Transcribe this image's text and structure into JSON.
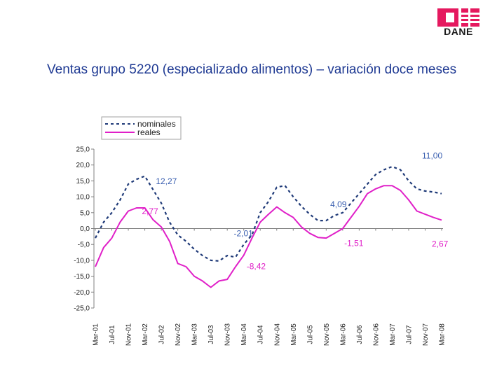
{
  "brand": {
    "logo_text": "DANE",
    "accent": "#e5195f"
  },
  "title": "Ventas grupo 5220 (especializado alimentos) – variación doce meses",
  "chart_data": {
    "type": "line",
    "title": "Ventas grupo 5220 (especializado alimentos) – variación doce meses",
    "xlabel": "",
    "ylabel": "",
    "ylim": [
      -25,
      25
    ],
    "yticks": [
      "25,0",
      "20,0",
      "15,0",
      "10,0",
      "5,0",
      "0,0",
      "-5,0",
      "-10,0",
      "-15,0",
      "-20,0",
      "-25,0"
    ],
    "x": [
      "Mar-01",
      "May-01",
      "Jul-01",
      "Sep-01",
      "Nov-01",
      "Ene-02",
      "Mar-02",
      "May-02",
      "Jul-02",
      "Sep-02",
      "Nov-02",
      "Ene-03",
      "Mar-03",
      "May-03",
      "Jul-03",
      "Sep-03",
      "Nov-03",
      "Ene-04",
      "Mar-04",
      "May-04",
      "Jul-04",
      "Sep-04",
      "Nov-04",
      "Ene-05",
      "Mar-05",
      "May-05",
      "Jul-05",
      "Sep-05",
      "Nov-05",
      "Ene-06",
      "Mar-06",
      "May-06",
      "Jul-06",
      "Sep-06",
      "Nov-06",
      "Ene-07",
      "Mar-07",
      "May-07",
      "Jul-07",
      "Sep-07",
      "Nov-07",
      "Ene-08",
      "Mar-08"
    ],
    "x_tick_labels": [
      "Mar-01",
      "Jul-01",
      "Nov-01",
      "Mar-02",
      "Jul-02",
      "Nov-02",
      "Mar-03",
      "Jul-03",
      "Nov-03",
      "Mar-04",
      "Jul-04",
      "Nov-04",
      "Mar-05",
      "Jul-05",
      "Nov-05",
      "Mar-06",
      "Jul-06",
      "Nov-06",
      "Mar-07",
      "Jul-07",
      "Nov-07",
      "Mar-08"
    ],
    "series": [
      {
        "name": "nominales",
        "color": "#1f3a78",
        "dash": true,
        "values": [
          -3.0,
          2.0,
          5.0,
          9.0,
          14.0,
          15.5,
          16.5,
          12.27,
          8.0,
          2.0,
          -2.0,
          -4.0,
          -6.5,
          -8.5,
          -10.0,
          -10.2,
          -8.5,
          -9.0,
          -5.0,
          -2.01,
          5.0,
          8.5,
          13.0,
          13.5,
          10.0,
          7.0,
          4.5,
          2.5,
          2.5,
          4.09,
          5.0,
          8.0,
          11.0,
          14.0,
          17.0,
          18.5,
          19.5,
          18.5,
          15.0,
          12.5,
          11.8,
          11.5,
          11.0
        ]
      },
      {
        "name": "reales",
        "color": "#e020c8",
        "dash": false,
        "values": [
          -12.0,
          -6.0,
          -3.0,
          2.0,
          5.5,
          6.5,
          6.5,
          2.77,
          0.5,
          -4.0,
          -11.0,
          -12.0,
          -15.0,
          -16.5,
          -18.5,
          -16.5,
          -16.0,
          -12.0,
          -8.42,
          -3.0,
          2.0,
          4.5,
          6.8,
          5.0,
          3.5,
          0.5,
          -1.5,
          -2.8,
          -3.0,
          -1.51,
          0.0,
          3.5,
          7.0,
          11.0,
          12.5,
          13.5,
          13.5,
          12.0,
          9.0,
          5.5,
          4.5,
          3.5,
          2.67
        ]
      }
    ],
    "annotations": [
      {
        "text": "12,27",
        "series": "nominales",
        "index": 7
      },
      {
        "text": "2,77",
        "series": "reales",
        "index": 7
      },
      {
        "text": "-2,01",
        "series": "nominales",
        "index": 19
      },
      {
        "text": "-8,42",
        "series": "reales",
        "index": 18
      },
      {
        "text": "4,09",
        "series": "nominales",
        "index": 29
      },
      {
        "text": "-1,51",
        "series": "reales",
        "index": 29
      },
      {
        "text": "11,00",
        "series": "nominales",
        "index": 42
      },
      {
        "text": "2,67",
        "series": "reales",
        "index": 42
      }
    ],
    "legend": {
      "position": "top-left",
      "entries": [
        "nominales",
        "reales"
      ]
    },
    "grid": false
  }
}
